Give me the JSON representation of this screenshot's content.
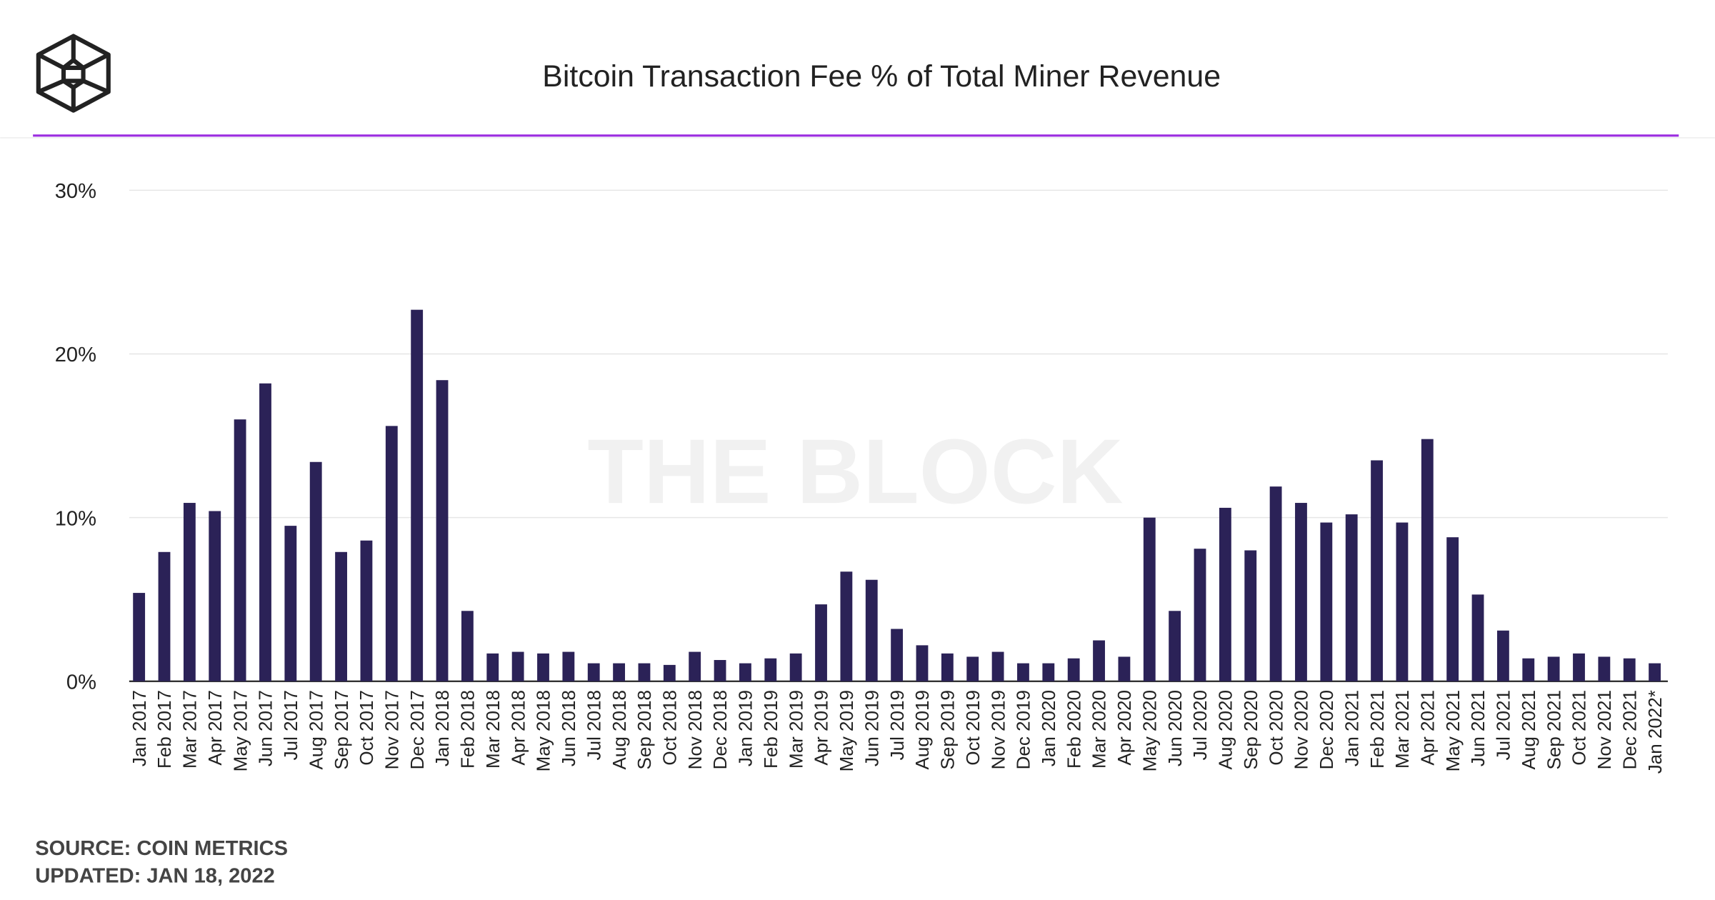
{
  "header": {
    "logo_text": "The Block",
    "title": "Bitcoin Transaction Fee % of Total Miner Revenue"
  },
  "watermark": "THE BLOCK",
  "footer": {
    "source": "SOURCE: COIN METRICS",
    "updated": "UPDATED: JAN 18, 2022"
  },
  "colors": {
    "bar": "#2b2257",
    "accent_line": "#9b2de0",
    "grid": "#e6e6e6",
    "text": "#222222",
    "footer_text": "#444444",
    "watermark": "#f1f1f1"
  },
  "chart_data": {
    "type": "bar",
    "title": "Bitcoin Transaction Fee % of Total Miner Revenue",
    "xlabel": "",
    "ylabel": "",
    "ylim": [
      0,
      30
    ],
    "yticks": [
      0,
      10,
      20,
      30
    ],
    "ytick_labels": [
      "0%",
      "10%",
      "20%",
      "30%"
    ],
    "grid": true,
    "categories": [
      "Jan 2017",
      "Feb 2017",
      "Mar 2017",
      "Apr 2017",
      "May 2017",
      "Jun 2017",
      "Jul 2017",
      "Aug 2017",
      "Sep 2017",
      "Oct 2017",
      "Nov 2017",
      "Dec 2017",
      "Jan 2018",
      "Feb 2018",
      "Mar 2018",
      "Apr 2018",
      "May 2018",
      "Jun 2018",
      "Jul 2018",
      "Aug 2018",
      "Sep 2018",
      "Oct 2018",
      "Nov 2018",
      "Dec 2018",
      "Jan 2019",
      "Feb 2019",
      "Mar 2019",
      "Apr 2019",
      "May 2019",
      "Jun 2019",
      "Jul 2019",
      "Aug 2019",
      "Sep 2019",
      "Oct 2019",
      "Nov 2019",
      "Dec 2019",
      "Jan 2020",
      "Feb 2020",
      "Mar 2020",
      "Apr 2020",
      "May 2020",
      "Jun 2020",
      "Jul 2020",
      "Aug 2020",
      "Sep 2020",
      "Oct 2020",
      "Nov 2020",
      "Dec 2020",
      "Jan 2021",
      "Feb 2021",
      "Mar 2021",
      "Apr 2021",
      "May 2021",
      "Jun 2021",
      "Jul 2021",
      "Aug 2021",
      "Sep 2021",
      "Oct 2021",
      "Nov 2021",
      "Dec 2021",
      "Jan 2022*"
    ],
    "values": [
      5.4,
      7.9,
      10.9,
      10.4,
      16.0,
      18.2,
      9.5,
      13.4,
      7.9,
      8.6,
      15.6,
      22.7,
      18.4,
      4.3,
      1.7,
      1.8,
      1.7,
      1.8,
      1.1,
      1.1,
      1.1,
      1.0,
      1.8,
      1.3,
      1.1,
      1.4,
      1.7,
      4.7,
      6.7,
      6.2,
      3.2,
      2.2,
      1.7,
      1.5,
      1.8,
      1.1,
      1.1,
      1.4,
      2.5,
      1.5,
      10.0,
      4.3,
      8.1,
      10.6,
      8.0,
      11.9,
      10.9,
      9.7,
      10.2,
      13.5,
      9.7,
      14.8,
      8.8,
      5.3,
      3.1,
      1.4,
      1.5,
      1.7,
      1.5,
      1.4,
      1.1
    ]
  }
}
